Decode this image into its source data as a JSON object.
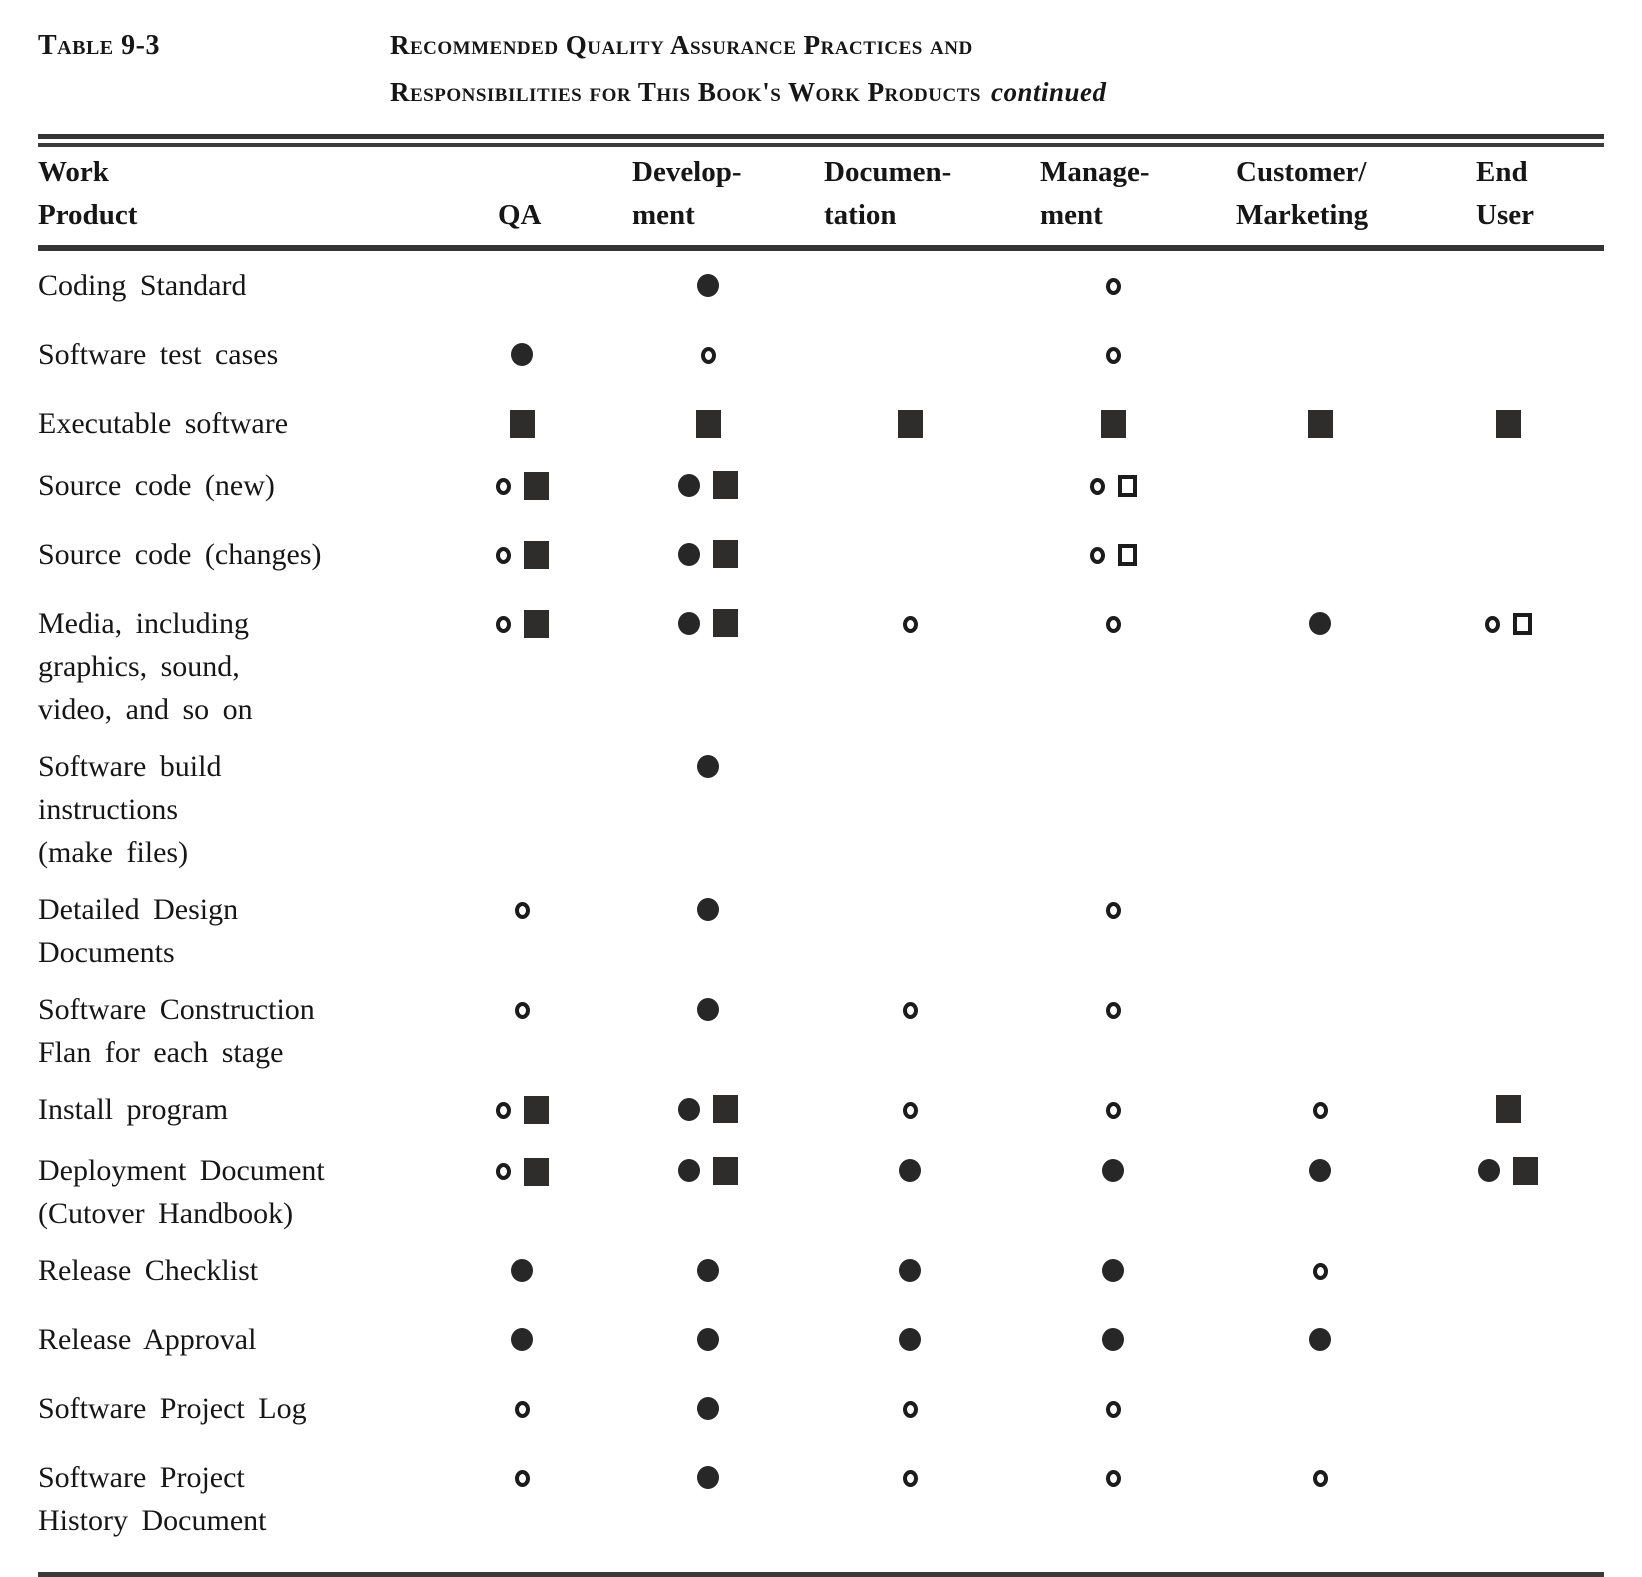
{
  "page": {
    "table_label": "Table 9-3",
    "title_line1": "Recommended Quality Assurance Practices and",
    "title_line2": "Responsibilities for This Book's Work Products",
    "title_emphasis": "continued"
  },
  "columns": [
    {
      "id": "work-product",
      "label_lines": [
        "Work",
        "Product"
      ]
    },
    {
      "id": "qa",
      "label_lines": [
        "QA"
      ]
    },
    {
      "id": "development",
      "label_lines": [
        "Develop-",
        "ment"
      ]
    },
    {
      "id": "documentation",
      "label_lines": [
        "Documen-",
        "tation"
      ]
    },
    {
      "id": "management",
      "label_lines": [
        "Manage-",
        "ment"
      ]
    },
    {
      "id": "customer-marketing",
      "label_lines": [
        "Customer/",
        "Marketing"
      ]
    },
    {
      "id": "end-user",
      "label_lines": [
        "End",
        "User"
      ]
    }
  ],
  "symbol_colors": {
    "ink": "#161616",
    "filled": "#2e2d2c"
  },
  "rows": [
    {
      "label_lines": [
        "Coding Standard"
      ],
      "cells": [
        [],
        [
          "filled-circle"
        ],
        [],
        [
          "open-circle"
        ],
        [],
        []
      ]
    },
    {
      "label_lines": [
        "Software test cases"
      ],
      "cells": [
        [
          "filled-circle"
        ],
        [
          "open-circle"
        ],
        [],
        [
          "open-circle"
        ],
        [],
        []
      ]
    },
    {
      "label_lines": [
        "Executable software"
      ],
      "cells": [
        [
          "filled-square"
        ],
        [
          "filled-square"
        ],
        [
          "filled-square"
        ],
        [
          "filled-square"
        ],
        [
          "filled-square"
        ],
        [
          "filled-square"
        ]
      ]
    },
    {
      "label_lines": [
        "Source code (new)"
      ],
      "cells": [
        [
          "open-circle",
          "filled-square"
        ],
        [
          "filled-circle",
          "filled-square"
        ],
        [],
        [
          "open-circle",
          "open-square"
        ],
        [],
        []
      ]
    },
    {
      "label_lines": [
        "Source code (changes)"
      ],
      "cells": [
        [
          "open-circle",
          "filled-square"
        ],
        [
          "filled-circle",
          "filled-square"
        ],
        [],
        [
          "open-circle",
          "open-square"
        ],
        [],
        []
      ]
    },
    {
      "label_lines": [
        "Media, including",
        "graphics, sound,",
        "video, and so on"
      ],
      "cells": [
        [
          "open-circle",
          "filled-square"
        ],
        [
          "filled-circle",
          "filled-square"
        ],
        [
          "open-circle"
        ],
        [
          "open-circle"
        ],
        [
          "filled-circle"
        ],
        [
          "open-circle",
          "open-square"
        ]
      ]
    },
    {
      "label_lines": [
        "Software build",
        "instructions",
        "(make files)"
      ],
      "cells": [
        [],
        [
          "filled-circle"
        ],
        [],
        [],
        [],
        []
      ]
    },
    {
      "label_lines": [
        "Detailed Design",
        "Documents"
      ],
      "cells": [
        [
          "open-circle"
        ],
        [
          "filled-circle"
        ],
        [],
        [
          "open-circle"
        ],
        [],
        []
      ]
    },
    {
      "label_lines": [
        "Software Construction",
        "Flan for each stage"
      ],
      "cells": [
        [
          "open-circle"
        ],
        [
          "filled-circle"
        ],
        [
          "open-circle"
        ],
        [
          "open-circle"
        ],
        [],
        []
      ]
    },
    {
      "label_lines": [
        "Install program"
      ],
      "cells": [
        [
          "open-circle",
          "filled-square"
        ],
        [
          "filled-circle",
          "filled-square"
        ],
        [
          "open-circle"
        ],
        [
          "open-circle"
        ],
        [
          "open-circle"
        ],
        [
          "filled-square"
        ]
      ]
    },
    {
      "label_lines": [
        "Deployment Document",
        "(Cutover Handbook)"
      ],
      "cells": [
        [
          "open-circle",
          "filled-square"
        ],
        [
          "filled-circle",
          "filled-square"
        ],
        [
          "filled-circle"
        ],
        [
          "filled-circle"
        ],
        [
          "filled-circle"
        ],
        [
          "filled-circle",
          "filled-square"
        ]
      ]
    },
    {
      "label_lines": [
        "Release Checklist"
      ],
      "cells": [
        [
          "filled-circle"
        ],
        [
          "filled-circle"
        ],
        [
          "filled-circle"
        ],
        [
          "filled-circle"
        ],
        [
          "open-circle"
        ],
        []
      ]
    },
    {
      "label_lines": [
        "Release Approval"
      ],
      "cells": [
        [
          "filled-circle"
        ],
        [
          "filled-circle"
        ],
        [
          "filled-circle"
        ],
        [
          "filled-circle"
        ],
        [
          "filled-circle"
        ],
        []
      ]
    },
    {
      "label_lines": [
        "Software Project Log"
      ],
      "cells": [
        [
          "open-circle"
        ],
        [
          "filled-circle"
        ],
        [
          "open-circle"
        ],
        [
          "open-circle"
        ],
        [],
        []
      ]
    },
    {
      "label_lines": [
        "Software Project",
        "History Document"
      ],
      "cells": [
        [
          "open-circle"
        ],
        [
          "filled-circle"
        ],
        [
          "open-circle"
        ],
        [
          "open-circle"
        ],
        [
          "open-circle"
        ],
        []
      ]
    }
  ]
}
